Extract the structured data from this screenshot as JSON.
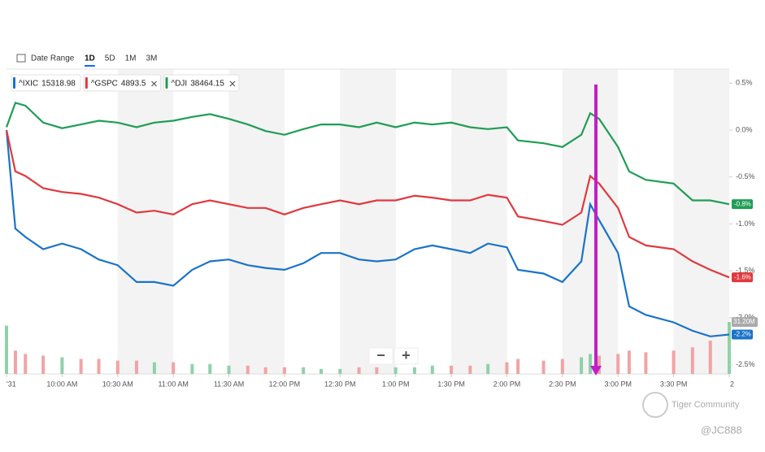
{
  "header": {
    "date_range": "Date Range",
    "ranges": [
      "1D",
      "5D",
      "1M",
      "3M"
    ],
    "selected": 0
  },
  "chart_data": {
    "type": "line",
    "x": [
      9.5,
      9.58,
      9.67,
      9.83,
      10,
      10.17,
      10.33,
      10.5,
      10.67,
      10.83,
      11,
      11.17,
      11.33,
      11.5,
      11.67,
      11.83,
      12,
      12.17,
      12.33,
      12.5,
      12.67,
      12.83,
      13,
      13.17,
      13.33,
      13.5,
      13.67,
      13.83,
      14,
      14.1,
      14.33,
      14.5,
      14.67,
      14.75,
      14.83,
      15,
      15.1,
      15.25,
      15.5,
      15.67,
      15.83,
      16
    ],
    "xlim": [
      9.5,
      16
    ],
    "xticks": [
      {
        "value": 9.5,
        "label": "'31"
      },
      {
        "value": 10,
        "label": "10:00 AM"
      },
      {
        "value": 10.5,
        "label": "10:30 AM"
      },
      {
        "value": 11,
        "label": "11:00 AM"
      },
      {
        "value": 11.5,
        "label": "11:30 AM"
      },
      {
        "value": 12,
        "label": "12:00 PM"
      },
      {
        "value": 12.5,
        "label": "12:30 PM"
      },
      {
        "value": 13,
        "label": "1:00 PM"
      },
      {
        "value": 13.5,
        "label": "1:30 PM"
      },
      {
        "value": 14,
        "label": "2:00 PM"
      },
      {
        "value": 14.5,
        "label": "2:30 PM"
      },
      {
        "value": 15,
        "label": "3:00 PM"
      },
      {
        "value": 15.5,
        "label": "3:30 PM"
      },
      {
        "value": 16,
        "label": "2"
      }
    ],
    "ylim": [
      -2.6,
      0.65
    ],
    "yticks": [
      {
        "value": 0.5,
        "label": "0.5%"
      },
      {
        "value": 0,
        "label": "0.0%"
      },
      {
        "value": -0.5,
        "label": "-0.5%"
      },
      {
        "value": -1,
        "label": "-1.0%"
      },
      {
        "value": -1.5,
        "label": "-1.5%"
      },
      {
        "value": -2,
        "label": "-2.0%"
      },
      {
        "value": -2.5,
        "label": "-2.5%"
      }
    ],
    "series": [
      {
        "name": "^IXIC",
        "price": 15318.98,
        "color": "#1a73c9",
        "end_label": "-2.2%",
        "values": [
          0,
          -1.05,
          -1.14,
          -1.27,
          -1.21,
          -1.27,
          -1.38,
          -1.44,
          -1.62,
          -1.62,
          -1.66,
          -1.49,
          -1.4,
          -1.38,
          -1.44,
          -1.47,
          -1.49,
          -1.42,
          -1.31,
          -1.31,
          -1.38,
          -1.4,
          -1.38,
          -1.27,
          -1.23,
          -1.27,
          -1.31,
          -1.21,
          -1.25,
          -1.49,
          -1.53,
          -1.62,
          -1.4,
          -0.79,
          -0.96,
          -1.31,
          -1.88,
          -1.97,
          -2.05,
          -2.14,
          -2.2,
          -2.18
        ]
      },
      {
        "name": "^GSPC",
        "price": 4893.5,
        "color": "#e0393e",
        "end_label": "-1.6%",
        "values": [
          0,
          -0.44,
          -0.49,
          -0.62,
          -0.66,
          -0.68,
          -0.72,
          -0.79,
          -0.88,
          -0.86,
          -0.9,
          -0.79,
          -0.75,
          -0.79,
          -0.83,
          -0.83,
          -0.9,
          -0.83,
          -0.79,
          -0.75,
          -0.79,
          -0.75,
          -0.75,
          -0.7,
          -0.72,
          -0.75,
          -0.75,
          -0.69,
          -0.72,
          -0.92,
          -0.97,
          -1.01,
          -0.88,
          -0.49,
          -0.57,
          -0.83,
          -1.14,
          -1.23,
          -1.27,
          -1.4,
          -1.49,
          -1.57
        ]
      },
      {
        "name": "^DJI",
        "price": 38464.15,
        "color": "#1f9d55",
        "end_label": "-0.8%",
        "values": [
          0.03,
          0.29,
          0.26,
          0.08,
          0.02,
          0.06,
          0.1,
          0.08,
          0.03,
          0.08,
          0.1,
          0.14,
          0.17,
          0.12,
          0.06,
          -0.01,
          -0.05,
          0.01,
          0.06,
          0.06,
          0.03,
          0.08,
          0.03,
          0.08,
          0.06,
          0.08,
          0.03,
          0.01,
          0.03,
          -0.11,
          -0.14,
          -0.18,
          -0.05,
          0.18,
          0.12,
          -0.18,
          -0.44,
          -0.53,
          -0.57,
          -0.75,
          -0.75,
          -0.79
        ]
      }
    ],
    "volume": {
      "values": [
        29,
        14,
        12,
        11,
        10,
        9,
        9,
        8,
        8,
        7,
        7,
        6,
        6,
        5,
        5,
        4,
        4,
        4,
        3,
        3,
        4,
        4,
        4,
        4,
        5,
        5,
        5,
        6,
        7,
        9,
        8,
        9,
        10,
        12,
        11,
        12,
        14,
        13,
        14,
        16,
        20,
        31.2
      ],
      "lim": [
        0,
        183
      ],
      "last_label": "31.20M"
    },
    "zoom": [
      "−",
      "+"
    ]
  },
  "watermark": {
    "brand": "Tiger Community",
    "user": "@JC888"
  }
}
